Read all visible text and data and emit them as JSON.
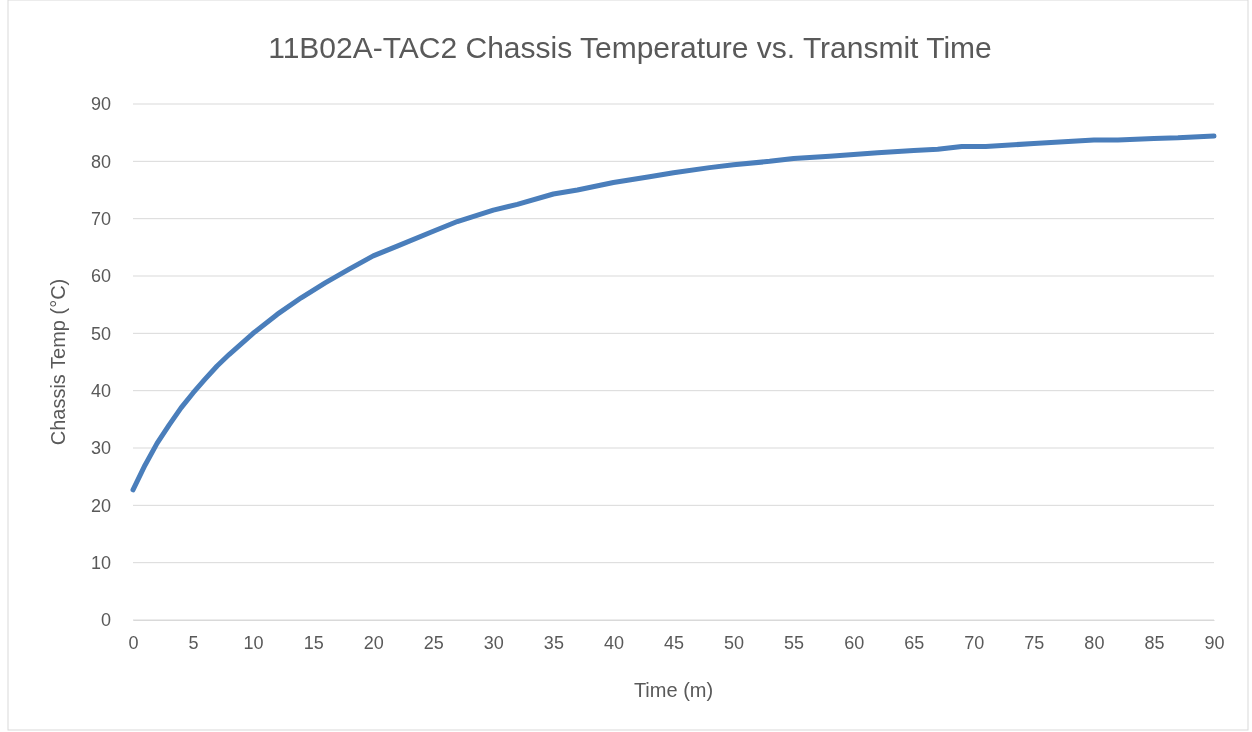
{
  "chart_data": {
    "type": "line",
    "title": "11B02A-TAC2 Chassis Temperature vs. Transmit Time",
    "xlabel": "Time (m)",
    "ylabel": "Chassis Temp (°C)",
    "x": [
      0,
      1,
      2,
      3,
      4,
      5,
      6,
      7,
      8,
      10,
      12,
      14,
      16,
      18,
      20,
      22,
      25,
      27,
      30,
      32,
      35,
      37,
      40,
      43,
      45,
      48,
      50,
      53,
      55,
      58,
      60,
      62,
      65,
      67,
      69,
      71,
      75,
      80,
      82,
      85,
      87,
      90
    ],
    "series": [
      {
        "color": "#4a7ebb",
        "values": [
          22.7,
          27,
          30.8,
          34,
          37,
          39.6,
          42,
          44.3,
          46.3,
          50,
          53.3,
          56.2,
          58.8,
          61.2,
          63.5,
          65.2,
          67.8,
          69.5,
          71.5,
          72.5,
          74.3,
          75,
          76.3,
          77.3,
          78,
          78.9,
          79.4,
          80,
          80.5,
          80.9,
          81.2,
          81.5,
          81.9,
          82.1,
          82.6,
          82.6,
          83.1,
          83.7,
          83.7,
          84,
          84.1,
          84.4
        ]
      }
    ],
    "xlim": [
      0,
      90
    ],
    "xticks": [
      0,
      5,
      10,
      15,
      20,
      25,
      30,
      35,
      40,
      45,
      50,
      55,
      60,
      65,
      70,
      75,
      80,
      85,
      90
    ],
    "ylim": [
      0,
      90
    ],
    "yticks": [
      0,
      10,
      20,
      30,
      40,
      50,
      60,
      70,
      80,
      90
    ],
    "grid": "y",
    "marker": "none",
    "line_style": "solid"
  }
}
